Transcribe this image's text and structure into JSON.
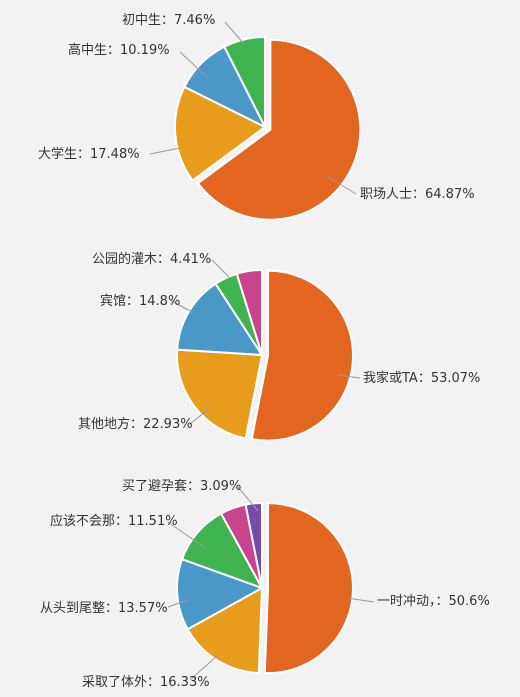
{
  "chart_data": [
    {
      "type": "pie",
      "slices": [
        {
          "label": "职场人士",
          "value": 64.87,
          "text": "职场人士：64.87%",
          "color": "#e2661f",
          "exploded": true
        },
        {
          "label": "大学生",
          "value": 17.48,
          "text": "大学生：17.48%",
          "color": "#e89c1c"
        },
        {
          "label": "高中生",
          "value": 10.19,
          "text": "高中生：10.19%",
          "color": "#4a98c7"
        },
        {
          "label": "初中生",
          "value": 7.46,
          "text": "初中生：7.46%",
          "color": "#3fb44e"
        }
      ]
    },
    {
      "type": "pie",
      "slices": [
        {
          "label": "我家或TA",
          "value": 53.07,
          "text": "我家或TA：53.07%",
          "color": "#e2661f",
          "exploded": true
        },
        {
          "label": "其他地方",
          "value": 22.93,
          "text": "其他地方：22.93%",
          "color": "#e89c1c"
        },
        {
          "label": "宾馆",
          "value": 14.8,
          "text": "宾馆：14.8%",
          "color": "#4a98c7"
        },
        {
          "label": "公园的灌木",
          "value": 4.41,
          "text": "公园的灌木：4.41%",
          "color": "#3fb44e"
        },
        {
          "label": "",
          "value": 4.79,
          "text": "",
          "color": "#c9438f"
        }
      ]
    },
    {
      "type": "pie",
      "slices": [
        {
          "label": "一时冲动，",
          "value": 50.6,
          "text": "一时冲动，：50.6%",
          "color": "#e2661f",
          "exploded": true
        },
        {
          "label": "采取了体外",
          "value": 16.33,
          "text": "采取了体外：16.33%",
          "color": "#e89c1c"
        },
        {
          "label": "从头到尾整",
          "value": 13.57,
          "text": "从头到尾整：13.57%",
          "color": "#4a98c7"
        },
        {
          "label": "应该不会那",
          "value": 11.51,
          "text": "应该不会那：11.51%",
          "color": "#3fb44e"
        },
        {
          "label": "",
          "value": 4.9,
          "text": "",
          "color": "#c9438f"
        },
        {
          "label": "买了避孕套",
          "value": 3.09,
          "text": "买了避孕套：3.09%",
          "color": "#7a4aa8"
        }
      ]
    }
  ]
}
